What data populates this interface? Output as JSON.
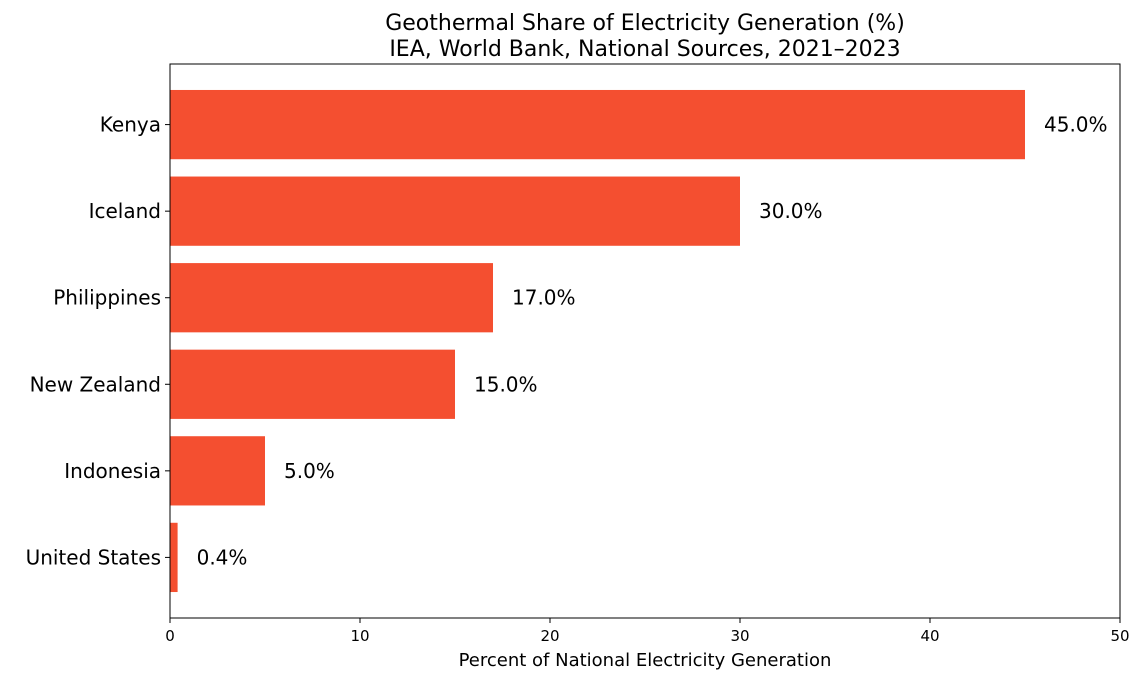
{
  "chart_data": {
    "type": "bar",
    "orientation": "horizontal",
    "title": "Geothermal Share of Electricity Generation (%)",
    "subtitle": "IEA, World Bank, National Sources, 2021–2023",
    "xlabel": "Percent of National Electricity Generation",
    "ylabel": "",
    "categories": [
      "Kenya",
      "Iceland",
      "Philippines",
      "New Zealand",
      "Indonesia",
      "United States"
    ],
    "values": [
      45.0,
      30.0,
      17.0,
      15.0,
      5.0,
      0.4
    ],
    "value_labels": [
      "45.0%",
      "30.0%",
      "17.0%",
      "15.0%",
      "5.0%",
      "0.4%"
    ],
    "xlim": [
      0,
      50
    ],
    "xticks": [
      0,
      10,
      20,
      30,
      40,
      50
    ],
    "xtick_labels": [
      "0",
      "10",
      "20",
      "30",
      "40",
      "50"
    ],
    "grid": false,
    "bar_color": "#f44f30"
  }
}
